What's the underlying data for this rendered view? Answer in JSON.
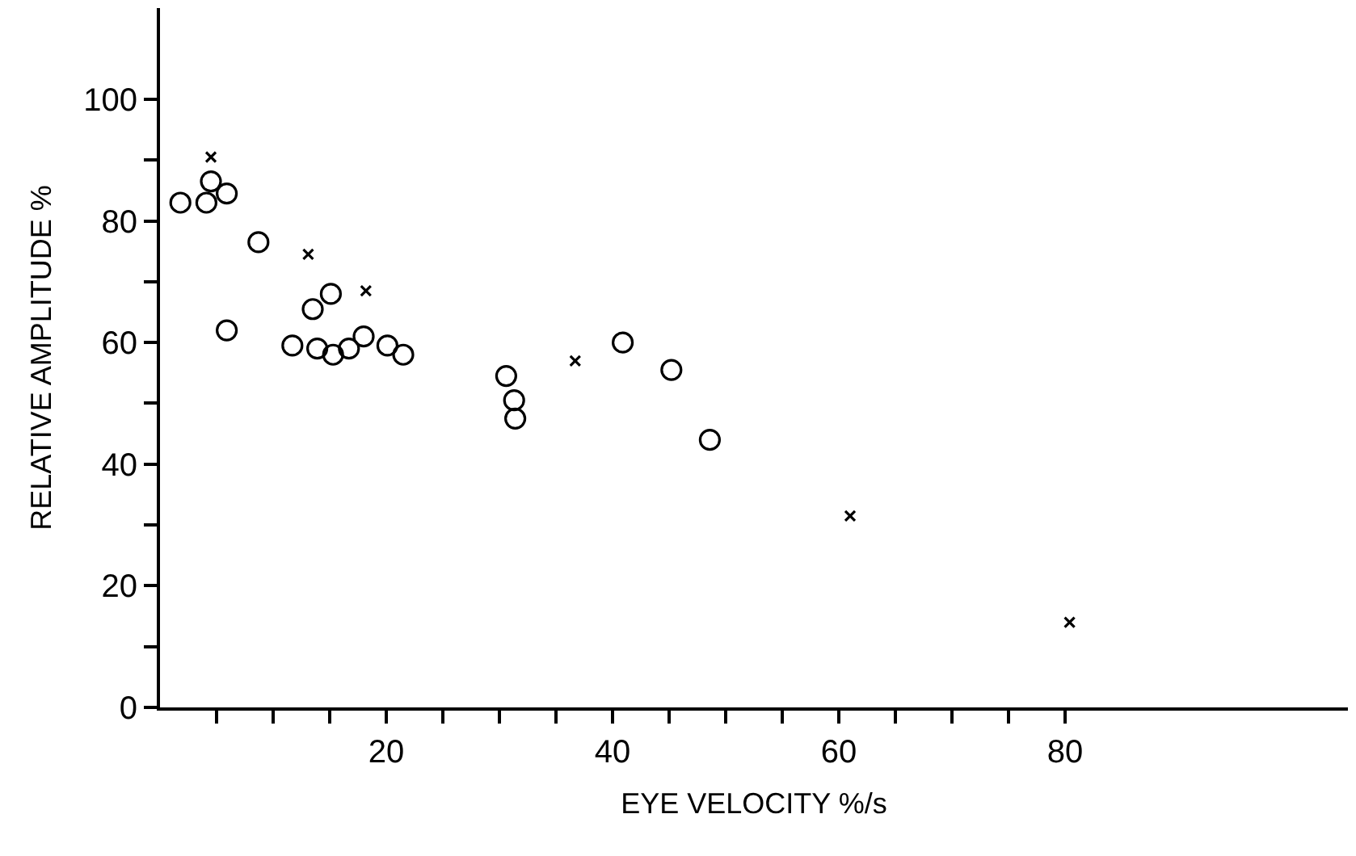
{
  "chart_data": {
    "type": "scatter",
    "xlabel": "EYE VELOCITY %/s",
    "ylabel": "RELATIVE AMPLITUDE %",
    "xlim": [
      0,
      105
    ],
    "ylim": [
      0,
      115
    ],
    "xticks": [
      {
        "value": 5,
        "label": null
      },
      {
        "value": 10,
        "label": null
      },
      {
        "value": 15,
        "label": null
      },
      20,
      {
        "value": 25,
        "label": null
      },
      {
        "value": 30,
        "label": null
      },
      {
        "value": 35,
        "label": null
      },
      40,
      {
        "value": 45,
        "label": null
      },
      {
        "value": 50,
        "label": null
      },
      {
        "value": 55,
        "label": null
      },
      60,
      {
        "value": 65,
        "label": null
      },
      {
        "value": 70,
        "label": null
      },
      {
        "value": 75,
        "label": null
      },
      80
    ],
    "yticks": [
      0,
      {
        "value": 10,
        "label": null
      },
      20,
      {
        "value": 30,
        "label": null
      },
      40,
      {
        "value": 50,
        "label": null
      },
      60,
      {
        "value": 70,
        "label": null
      },
      80,
      {
        "value": 90,
        "label": null
      },
      100
    ],
    "series": [
      {
        "color": "#000000",
        "marker": "circle",
        "x": [
          1.8,
          4.1,
          4.5,
          5.9,
          5.9,
          8.7,
          11.7,
          13.5,
          13.9,
          15.1,
          15.3,
          16.7,
          18.0,
          20.1,
          21.5,
          30.6,
          31.3,
          31.4,
          40.9,
          45.2,
          48.6
        ],
        "values": [
          83,
          83,
          86.5,
          84.5,
          62,
          76.5,
          59.5,
          65.5,
          59,
          68,
          58,
          59,
          61,
          59.5,
          58,
          54.5,
          50.5,
          47.5,
          60,
          55.5,
          44
        ]
      },
      {
        "color": "#000000",
        "marker": "cross",
        "x": [
          4.5,
          13.1,
          18.2,
          36.7,
          61.0,
          80.4
        ],
        "values": [
          90.5,
          74.5,
          68.5,
          57,
          31.5,
          14
        ]
      }
    ]
  }
}
